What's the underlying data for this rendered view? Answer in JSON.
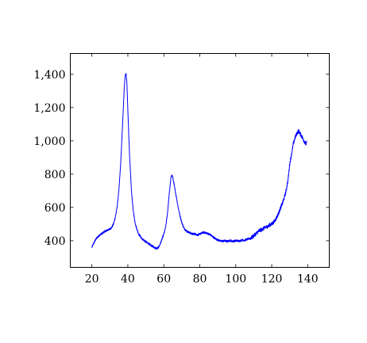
{
  "chart_data": {
    "type": "line",
    "title": "",
    "xlabel": "",
    "ylabel": "",
    "xlim": [
      8,
      152
    ],
    "ylim": [
      240,
      1525
    ],
    "xticks": [
      20,
      40,
      60,
      80,
      100,
      120,
      140
    ],
    "xtick_labels": [
      "20",
      "40",
      "60",
      "80",
      "100",
      "120",
      "140"
    ],
    "yticks": [
      400,
      600,
      800,
      1000,
      1200,
      1400
    ],
    "ytick_labels": [
      "400",
      "600",
      "800",
      "1,000",
      "1,200",
      "1,400"
    ],
    "grid": false,
    "series": [
      {
        "color": "#0000ff",
        "x": [
          20,
          21,
          22,
          23,
          24,
          25,
          26,
          27,
          28,
          29,
          30,
          31,
          32,
          33,
          34,
          35,
          36,
          37,
          38,
          38.5,
          39,
          39.5,
          40,
          41,
          42,
          43,
          44,
          45,
          46,
          47,
          48,
          49,
          50,
          51,
          52,
          53,
          54,
          55,
          56,
          57,
          58,
          59,
          60,
          61,
          62,
          63,
          64,
          64.5,
          65,
          66,
          67,
          68,
          69,
          70,
          71,
          72,
          73,
          74,
          75,
          76,
          77,
          78,
          79,
          80,
          81,
          82,
          83,
          84,
          85,
          86,
          87,
          88,
          89,
          90,
          91,
          92,
          93,
          94,
          95,
          96,
          97,
          98,
          99,
          100,
          101,
          102,
          103,
          104,
          105,
          106,
          107,
          108,
          109,
          110,
          111,
          112,
          113,
          114,
          115,
          116,
          117,
          118,
          119,
          120,
          121,
          122,
          123,
          124,
          125,
          126,
          127,
          128,
          129,
          130,
          131,
          132,
          133,
          134,
          135,
          136,
          137,
          138,
          139,
          139.5
        ],
        "y": [
          360,
          385,
          405,
          420,
          430,
          440,
          445,
          455,
          460,
          465,
          470,
          480,
          500,
          540,
          600,
          700,
          860,
          1080,
          1320,
          1390,
          1405,
          1340,
          1180,
          900,
          700,
          580,
          510,
          470,
          440,
          425,
          410,
          400,
          395,
          385,
          380,
          372,
          365,
          358,
          352,
          360,
          380,
          410,
          440,
          480,
          560,
          680,
          780,
          795,
          780,
          720,
          660,
          600,
          550,
          510,
          480,
          465,
          455,
          450,
          445,
          440,
          442,
          438,
          435,
          440,
          445,
          450,
          448,
          445,
          440,
          435,
          425,
          418,
          410,
          405,
          400,
          398,
          398,
          400,
          396,
          398,
          402,
          396,
          398,
          400,
          400,
          398,
          402,
          405,
          402,
          408,
          410,
          415,
          420,
          430,
          440,
          450,
          460,
          465,
          470,
          478,
          482,
          488,
          495,
          500,
          510,
          525,
          545,
          570,
          600,
          625,
          660,
          700,
          760,
          860,
          920,
          980,
          1020,
          1045,
          1060,
          1040,
          1020,
          1000,
          980,
          990
        ]
      }
    ]
  }
}
